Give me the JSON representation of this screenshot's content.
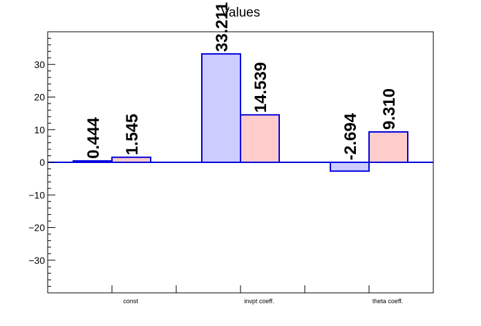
{
  "chart_data": {
    "type": "bar",
    "title": "Values",
    "categories": [
      "const",
      "invpt coeff.",
      "theta coeff."
    ],
    "series": [
      {
        "values": [
          0.444,
          33.211,
          -2.694
        ],
        "labels": [
          "0.444",
          "33.211",
          "-2.694"
        ]
      },
      {
        "values": [
          1.545,
          14.539,
          9.31
        ],
        "labels": [
          "1.545",
          "14.539",
          "9.310"
        ]
      }
    ],
    "ylim": [
      -40,
      40
    ],
    "yticks": [
      -30,
      -20,
      -10,
      0,
      10,
      20,
      30
    ],
    "ytick_labels": [
      "−30",
      "−20",
      "−10",
      "0",
      "10",
      "20",
      "30"
    ],
    "colors": {
      "fill": [
        "#ccccff",
        "#ffcccc"
      ],
      "stroke": "#0000dd",
      "axis": "#000000"
    },
    "grid": false,
    "legend": "none"
  }
}
